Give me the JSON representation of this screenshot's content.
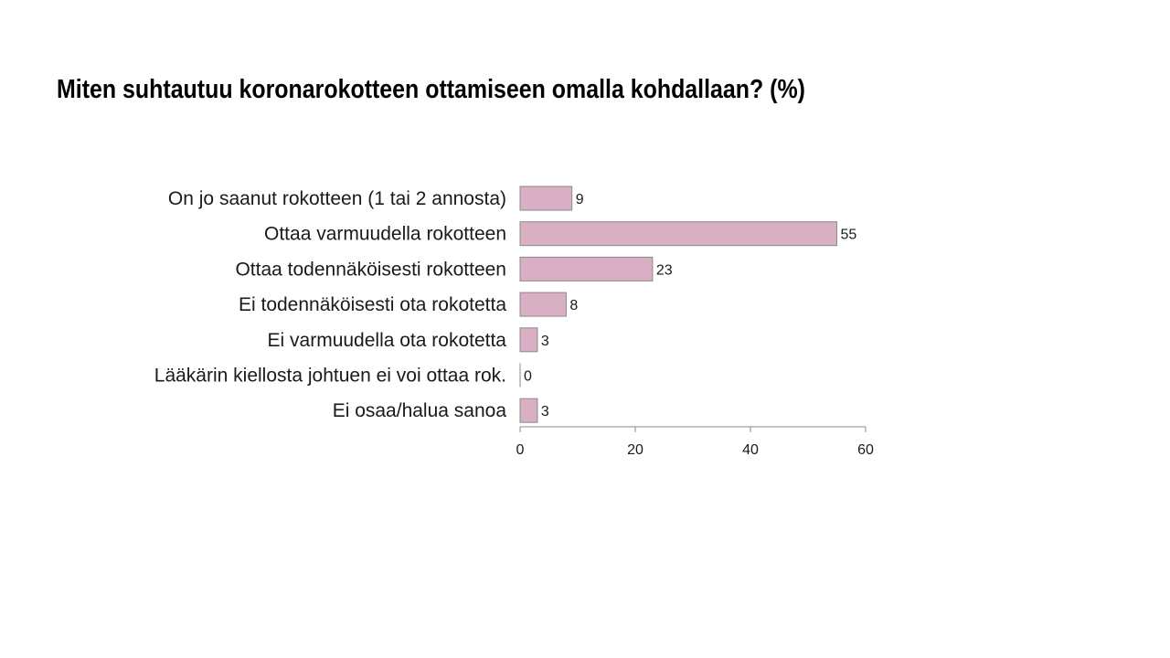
{
  "slide": {
    "title": "Miten suhtautuu koronarokotteen ottamiseen omalla kohdallaan? (%)"
  },
  "chart_data": {
    "type": "bar",
    "orientation": "horizontal",
    "categories": [
      "On jo saanut rokotteen (1 tai 2 annosta)",
      "Ottaa varmuudella rokotteen",
      "Ottaa todennäköisesti rokotteen",
      "Ei todennäköisesti ota rokotetta",
      "Ei varmuudella ota rokotetta",
      "Lääkärin kiellosta johtuen ei voi ottaa rok.",
      "Ei osaa/halua sanoa"
    ],
    "values": [
      9,
      55,
      23,
      8,
      3,
      0,
      3
    ],
    "xlim": [
      0,
      60
    ],
    "xticks": [
      0,
      20,
      40,
      60
    ],
    "data_labels": true,
    "grid": false,
    "bar_color": "#d8afc3",
    "bar_edge_color": "#8a8a8a"
  }
}
